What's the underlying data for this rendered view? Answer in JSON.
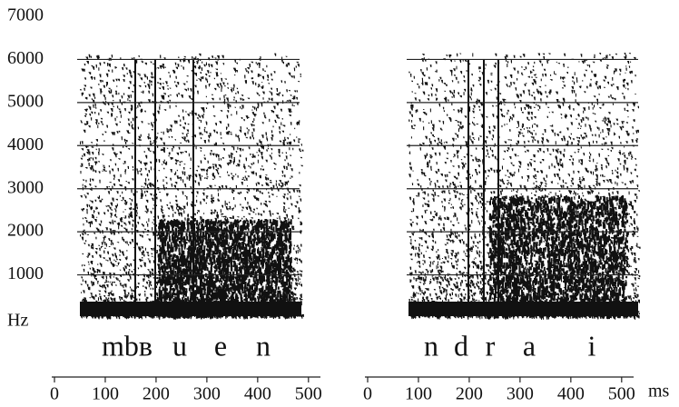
{
  "chart_data": [
    {
      "type": "spectrogram",
      "ylabel": "Hz",
      "ylim": [
        0,
        7000
      ],
      "yticks": [
        1000,
        2000,
        3000,
        4000,
        5000,
        6000,
        7000
      ],
      "xlim": [
        0,
        520
      ],
      "xticks": [
        0,
        100,
        200,
        300,
        400,
        500
      ],
      "grid": true,
      "segments": [
        "mbʙ",
        "u",
        "e",
        "n"
      ]
    },
    {
      "type": "spectrogram",
      "xlabel": "ms",
      "ylim": [
        0,
        7000
      ],
      "yticks": [
        1000,
        2000,
        3000,
        4000,
        5000,
        6000,
        7000
      ],
      "xlim": [
        0,
        520
      ],
      "xticks": [
        0,
        100,
        200,
        300,
        400,
        500
      ],
      "grid": true,
      "segments": [
        "n",
        "d",
        "r",
        "a",
        "i"
      ]
    }
  ]
}
